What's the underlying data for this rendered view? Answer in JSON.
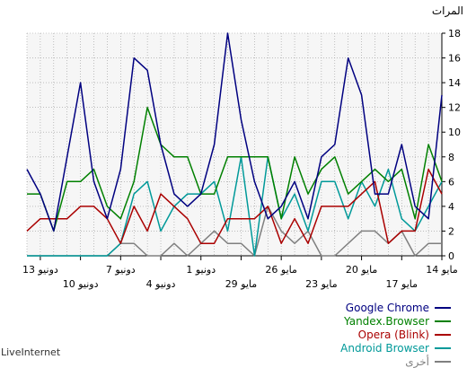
{
  "chart_data": {
    "type": "line",
    "ylabel": "المرات",
    "ylim": [
      0,
      18
    ],
    "yticks": [
      0,
      2,
      4,
      6,
      8,
      10,
      12,
      14,
      16,
      18
    ],
    "grid": true,
    "legend_position": "bottom-right",
    "x_labels_top": [
      {
        "i": 0,
        "label": "14 مايو"
      },
      {
        "i": 6,
        "label": "20 مايو"
      },
      {
        "i": 12,
        "label": "26 مايو"
      },
      {
        "i": 18,
        "label": "1 دونيو"
      },
      {
        "i": 24,
        "label": "7 دونيو"
      },
      {
        "i": 30,
        "label": "13 دونيو"
      }
    ],
    "x_labels_bottom": [
      {
        "i": 3,
        "label": "17 مايو"
      },
      {
        "i": 9,
        "label": "23 مايو"
      },
      {
        "i": 15,
        "label": "29 مايو"
      },
      {
        "i": 21,
        "label": "4 دونيو"
      },
      {
        "i": 27,
        "label": "10 دونيو"
      }
    ],
    "series": [
      {
        "name": "Google Chrome",
        "color": "#000080",
        "values": [
          13,
          3,
          4,
          9,
          5,
          5,
          13,
          16,
          9,
          8,
          3,
          6,
          4,
          3,
          6,
          11,
          18,
          9,
          5,
          4,
          5,
          9,
          15,
          16,
          7,
          3,
          6,
          14,
          8,
          2,
          5,
          7
        ]
      },
      {
        "name": "Yandex.Browser",
        "color": "#008000",
        "values": [
          6,
          9,
          3,
          7,
          6,
          7,
          6,
          5,
          8,
          7,
          5,
          8,
          3,
          8,
          8,
          8,
          8,
          5,
          5,
          8,
          8,
          9,
          12,
          6,
          3,
          4,
          7,
          6,
          6,
          2,
          5,
          5
        ]
      },
      {
        "name": "Opera (Blink)",
        "color": "#aa0000",
        "values": [
          5,
          7,
          2,
          2,
          1,
          6,
          5,
          4,
          4,
          4,
          1,
          3,
          1,
          4,
          3,
          3,
          3,
          1,
          1,
          3,
          4,
          5,
          2,
          4,
          1,
          3,
          4,
          4,
          3,
          3,
          3,
          2
        ]
      },
      {
        "name": "Android Browser",
        "color": "#009999",
        "values": [
          6,
          4,
          2,
          3,
          7,
          4,
          6,
          3,
          6,
          6,
          2,
          5,
          3,
          8,
          0,
          8,
          2,
          6,
          5,
          5,
          4,
          2,
          6,
          5,
          1,
          0,
          0,
          0,
          0,
          0,
          0,
          0
        ]
      },
      {
        "name": "أخرى",
        "color": "#808080",
        "values": [
          1,
          1,
          0,
          2,
          1,
          2,
          2,
          1,
          0,
          0,
          2,
          1,
          2,
          4,
          0,
          1,
          1,
          2,
          1,
          0,
          1,
          0,
          0,
          1,
          1,
          0,
          0,
          0,
          0,
          0,
          0,
          0
        ]
      }
    ]
  },
  "footer": {
    "credit": "LiveInternet"
  }
}
